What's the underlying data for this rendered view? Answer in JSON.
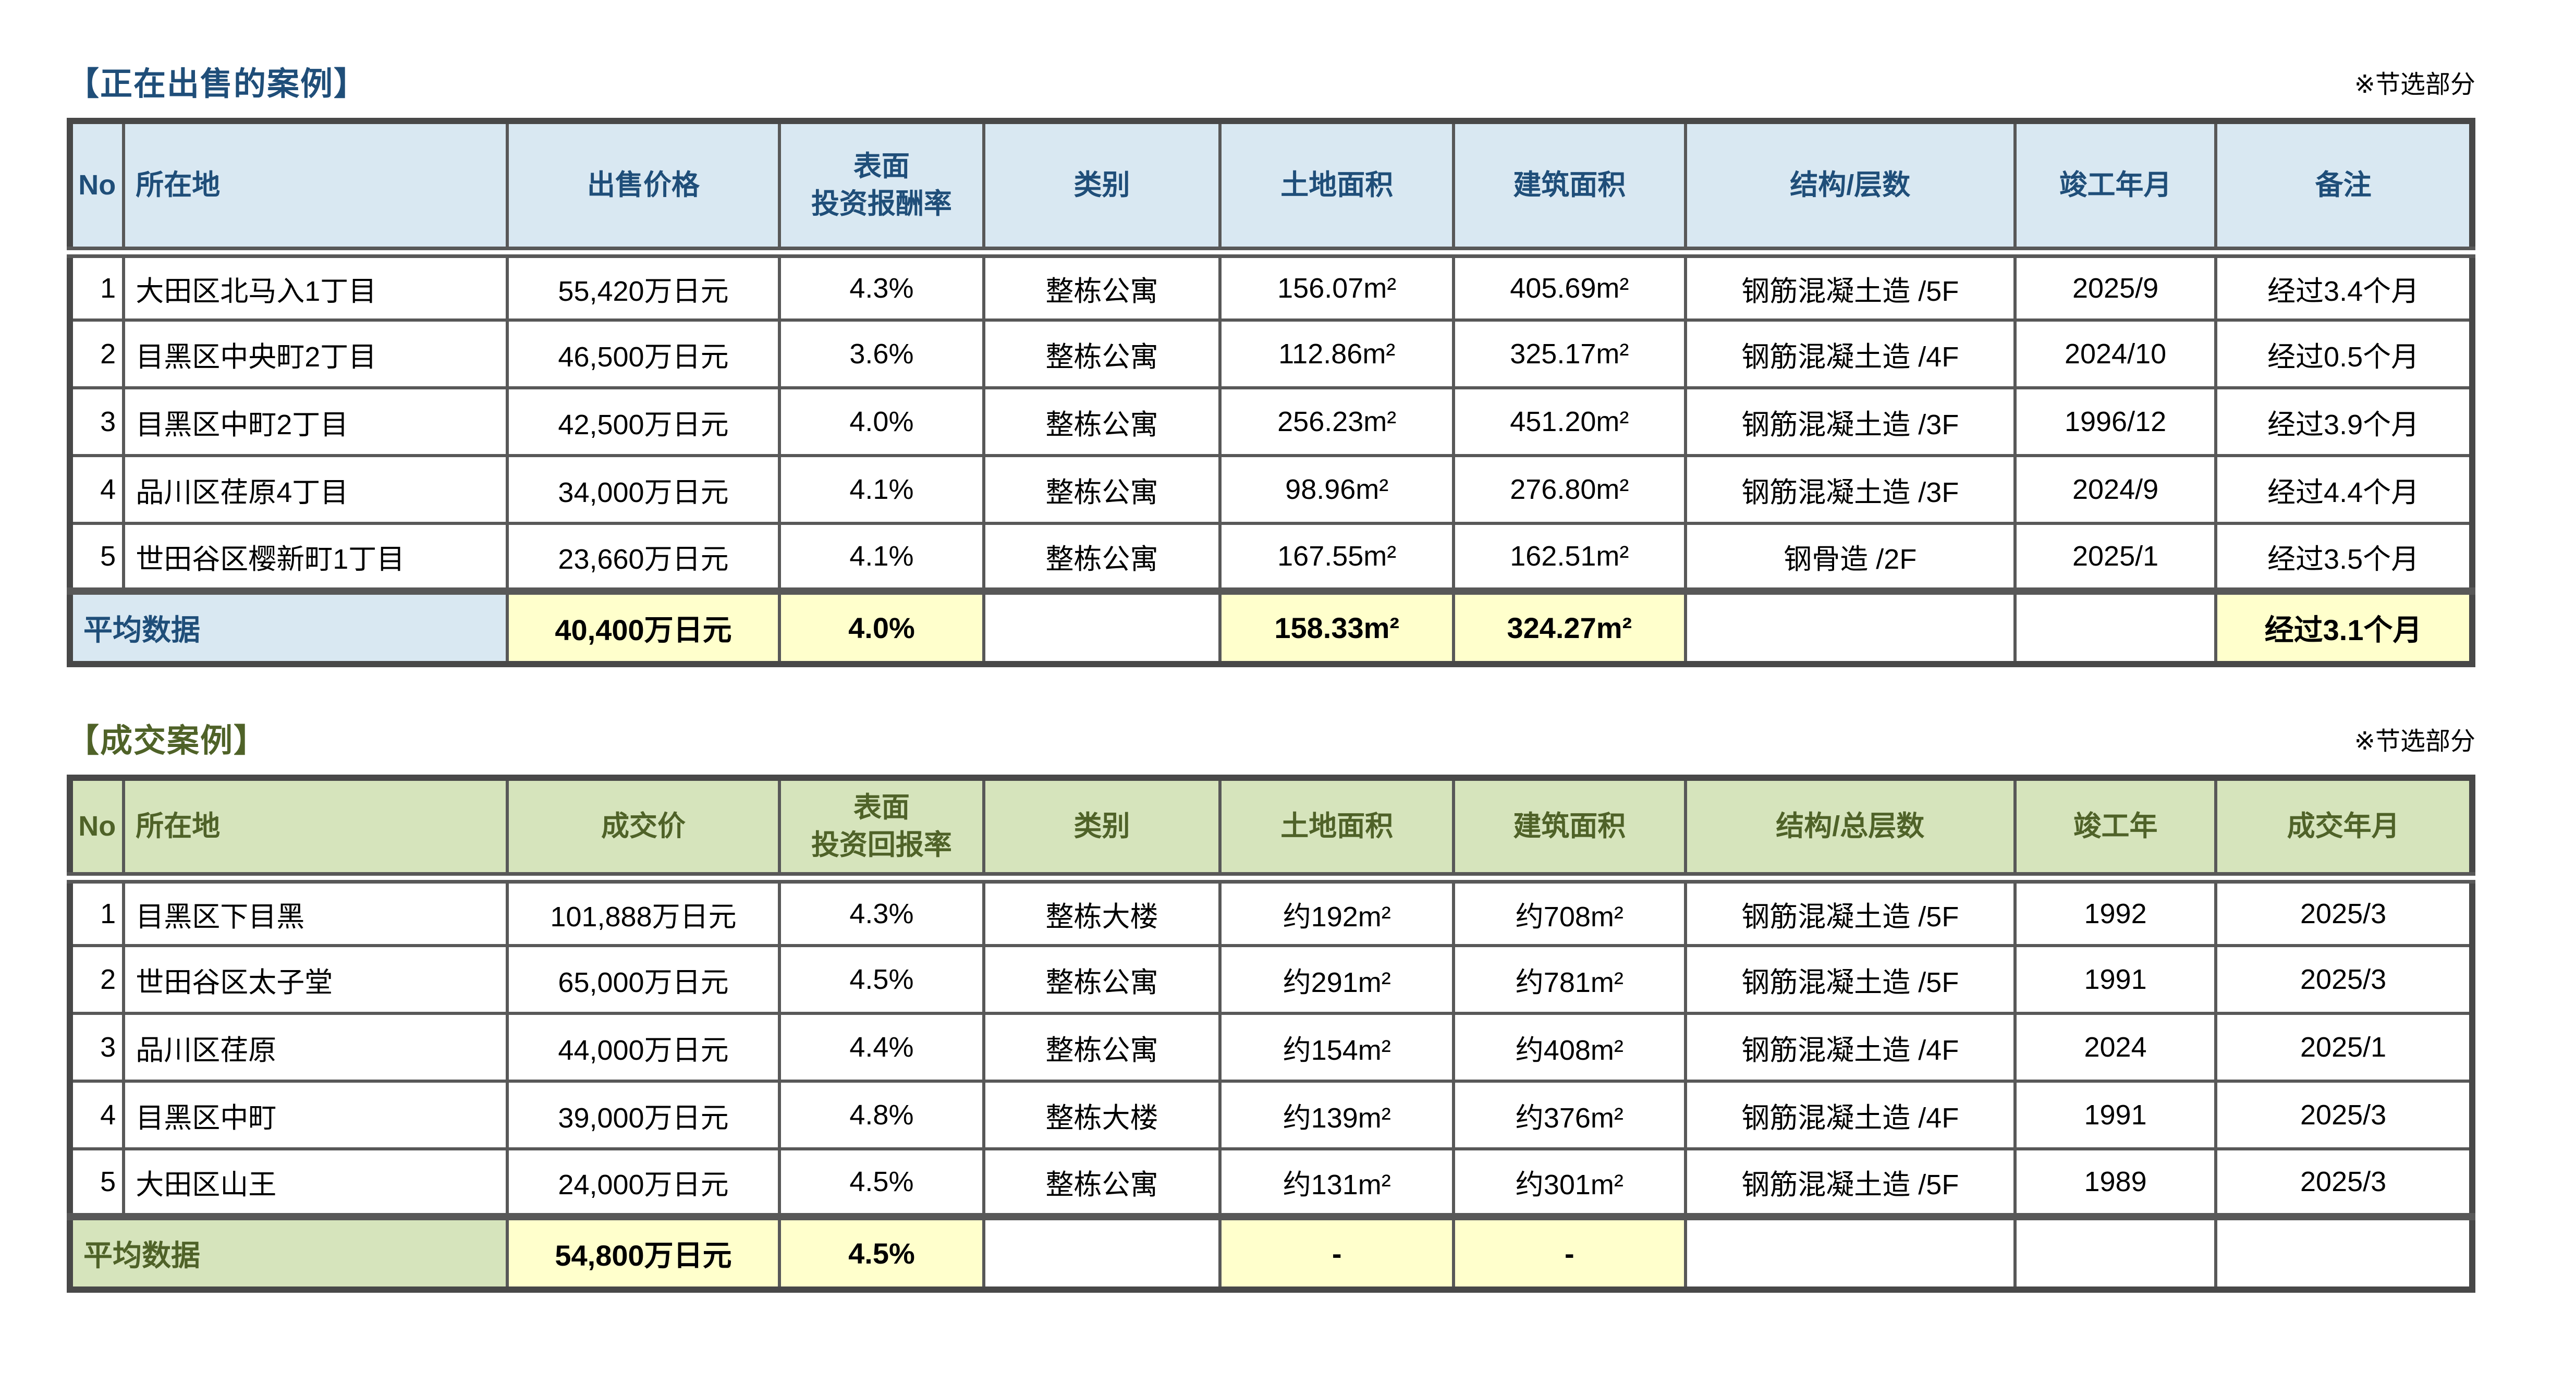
{
  "tables": [
    {
      "id": "selling-cases",
      "title": "【正在出售的案例】",
      "note": "※节选部分",
      "theme": {
        "title_color": "#1F4E79",
        "header_bg": "#D9E8F2",
        "header_text": "#1F4E79",
        "label_bg": "#D9E8F2",
        "label_text": "#1F4E79",
        "highlight_bg": "#FFFFCC"
      },
      "columns": [
        {
          "key": "no",
          "label": "No"
        },
        {
          "key": "location",
          "label": "所在地"
        },
        {
          "key": "price",
          "label": "出售价格"
        },
        {
          "key": "yield",
          "label": "表面\n投资报酬率"
        },
        {
          "key": "category",
          "label": "类别"
        },
        {
          "key": "land_area",
          "label": "土地面积"
        },
        {
          "key": "building_area",
          "label": "建筑面积"
        },
        {
          "key": "structure",
          "label": "结构/层数"
        },
        {
          "key": "built",
          "label": "竣工年月"
        },
        {
          "key": "remark",
          "label": "备注"
        }
      ],
      "rows": [
        [
          "1",
          "大田区北马入1丁目",
          "55,420万日元",
          "4.3%",
          "整栋公寓",
          "156.07m²",
          "405.69m²",
          "钢筋混凝土造 /5F",
          "2025/9",
          "经过3.4个月"
        ],
        [
          "2",
          "目黑区中央町2丁目",
          "46,500万日元",
          "3.6%",
          "整栋公寓",
          "112.86m²",
          "325.17m²",
          "钢筋混凝土造 /4F",
          "2024/10",
          "经过0.5个月"
        ],
        [
          "3",
          "目黑区中町2丁目",
          "42,500万日元",
          "4.0%",
          "整栋公寓",
          "256.23m²",
          "451.20m²",
          "钢筋混凝土造 /3F",
          "1996/12",
          "经过3.9个月"
        ],
        [
          "4",
          "品川区荏原4丁目",
          "34,000万日元",
          "4.1%",
          "整栋公寓",
          "98.96m²",
          "276.80m²",
          "钢筋混凝土造 /3F",
          "2024/9",
          "经过4.4个月"
        ],
        [
          "5",
          "世田谷区樱新町1丁目",
          "23,660万日元",
          "4.1%",
          "整栋公寓",
          "167.55m²",
          "162.51m²",
          "钢骨造 /2F",
          "2025/1",
          "经过3.5个月"
        ]
      ],
      "average": {
        "label": "平均数据",
        "cells": [
          {
            "text": "40,400万日元",
            "highlight": true
          },
          {
            "text": "4.0%",
            "highlight": true
          },
          {
            "text": "",
            "highlight": false
          },
          {
            "text": "158.33m²",
            "highlight": true
          },
          {
            "text": "324.27m²",
            "highlight": true
          },
          {
            "text": "",
            "highlight": false
          },
          {
            "text": "",
            "highlight": false
          },
          {
            "text": "经过3.1个月",
            "highlight": true
          }
        ]
      }
    },
    {
      "id": "closed-cases",
      "title": "【成交案例】",
      "note": "※节选部分",
      "theme": {
        "title_color": "#4F6228",
        "header_bg": "#D6E4BC",
        "header_text": "#4F6228",
        "label_bg": "#D6E4BC",
        "label_text": "#4F6228",
        "highlight_bg": "#FFFFCC"
      },
      "columns": [
        {
          "key": "no",
          "label": "No"
        },
        {
          "key": "location",
          "label": "所在地"
        },
        {
          "key": "price",
          "label": "成交价"
        },
        {
          "key": "yield",
          "label": "表面\n投资回报率"
        },
        {
          "key": "category",
          "label": "类别"
        },
        {
          "key": "land_area",
          "label": "土地面积"
        },
        {
          "key": "building_area",
          "label": "建筑面积"
        },
        {
          "key": "structure",
          "label": "结构/总层数"
        },
        {
          "key": "built",
          "label": "竣工年"
        },
        {
          "key": "deal_date",
          "label": "成交年月"
        }
      ],
      "rows": [
        [
          "1",
          "目黑区下目黑",
          "101,888万日元",
          "4.3%",
          "整栋大楼",
          "约192m²",
          "约708m²",
          "钢筋混凝土造 /5F",
          "1992",
          "2025/3"
        ],
        [
          "2",
          "世田谷区太子堂",
          "65,000万日元",
          "4.5%",
          "整栋公寓",
          "约291m²",
          "约781m²",
          "钢筋混凝土造 /5F",
          "1991",
          "2025/3"
        ],
        [
          "3",
          "品川区荏原",
          "44,000万日元",
          "4.4%",
          "整栋公寓",
          "约154m²",
          "约408m²",
          "钢筋混凝土造 /4F",
          "2024",
          "2025/1"
        ],
        [
          "4",
          "目黑区中町",
          "39,000万日元",
          "4.8%",
          "整栋大楼",
          "约139m²",
          "约376m²",
          "钢筋混凝土造 /4F",
          "1991",
          "2025/3"
        ],
        [
          "5",
          "大田区山王",
          "24,000万日元",
          "4.5%",
          "整栋公寓",
          "约131m²",
          "约301m²",
          "钢筋混凝土造 /5F",
          "1989",
          "2025/3"
        ]
      ],
      "average": {
        "label": "平均数据",
        "cells": [
          {
            "text": "54,800万日元",
            "highlight": true
          },
          {
            "text": "4.5%",
            "highlight": true
          },
          {
            "text": "",
            "highlight": false
          },
          {
            "text": "-",
            "highlight": true
          },
          {
            "text": "-",
            "highlight": true
          },
          {
            "text": "",
            "highlight": false
          },
          {
            "text": "",
            "highlight": false
          },
          {
            "text": "",
            "highlight": false
          }
        ]
      }
    }
  ]
}
